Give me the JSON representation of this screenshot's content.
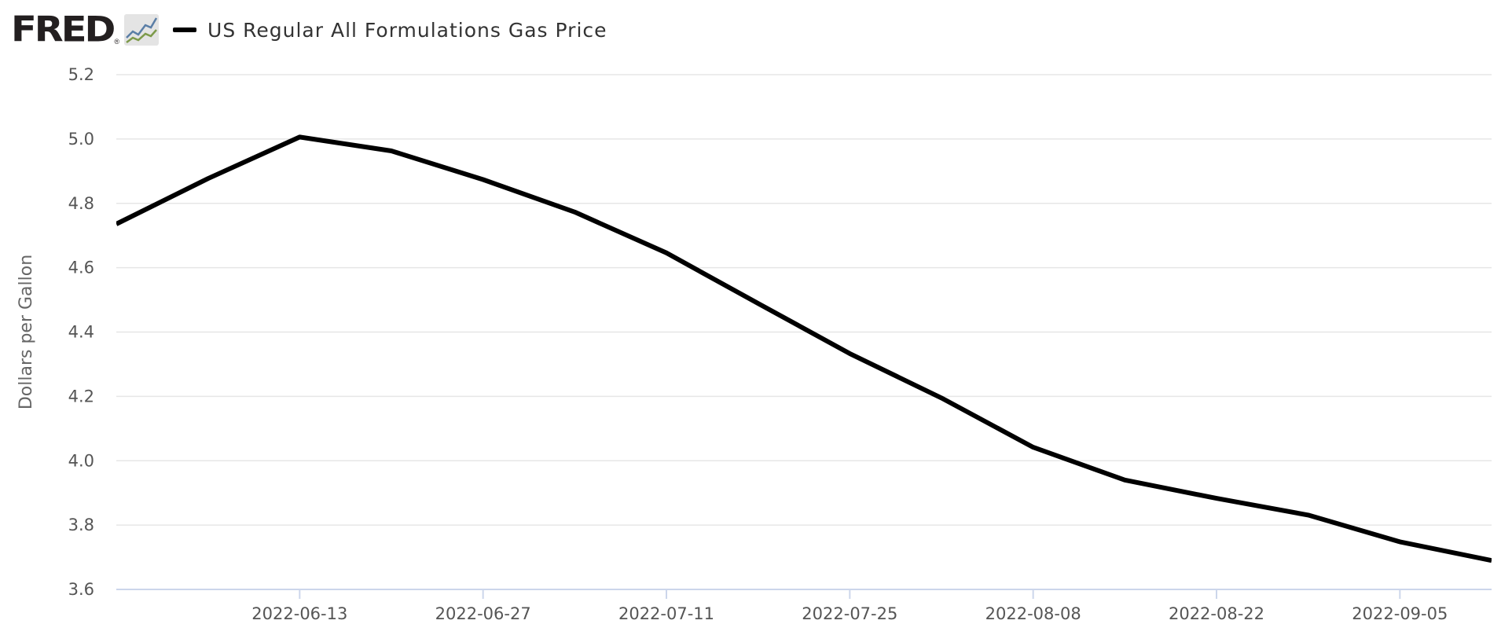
{
  "brand": {
    "wordmark": "FRED",
    "registered": "®",
    "graph_icon": "fred-graph-icon"
  },
  "chart_data": {
    "type": "line",
    "title": "",
    "xlabel": "",
    "ylabel": "Dollars per Gallon",
    "ylim": [
      3.6,
      5.2
    ],
    "yticks": [
      "3.6",
      "3.8",
      "4.0",
      "4.2",
      "4.4",
      "4.6",
      "4.8",
      "5.0",
      "5.2"
    ],
    "xlim": [
      "2022-05-30",
      "2022-09-12"
    ],
    "xticks": [
      "2022-06-13",
      "2022-06-27",
      "2022-07-11",
      "2022-07-25",
      "2022-08-08",
      "2022-08-22",
      "2022-09-05"
    ],
    "grid": true,
    "legend_position": "top-left",
    "series": [
      {
        "name": "US Regular All Formulations Gas Price",
        "color": "#000000",
        "x": [
          "2022-05-30",
          "2022-06-06",
          "2022-06-13",
          "2022-06-20",
          "2022-06-27",
          "2022-07-04",
          "2022-07-11",
          "2022-07-18",
          "2022-07-25",
          "2022-08-01",
          "2022-08-08",
          "2022-08-15",
          "2022-08-22",
          "2022-08-29",
          "2022-09-05",
          "2022-09-12"
        ],
        "values": [
          4.736,
          4.877,
          5.006,
          4.963,
          4.874,
          4.773,
          4.646,
          4.489,
          4.333,
          4.195,
          4.042,
          3.94,
          3.883,
          3.831,
          3.748,
          3.69
        ]
      }
    ]
  }
}
